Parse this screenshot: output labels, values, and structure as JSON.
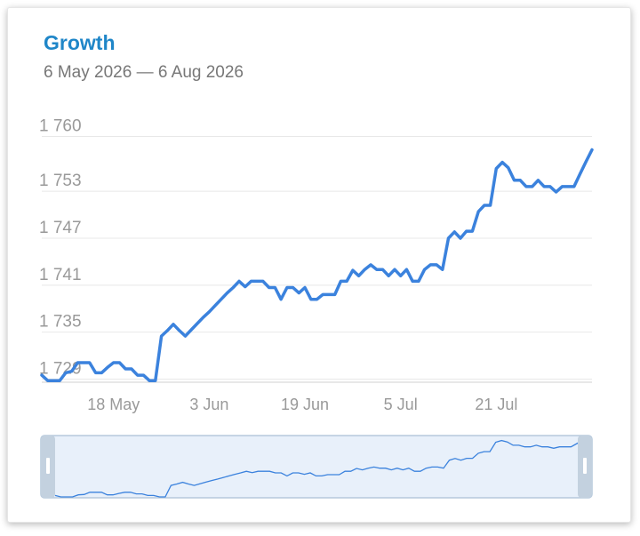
{
  "header": {
    "title": "Growth",
    "subtitle": "6 May 2026 — 6 Aug 2026"
  },
  "colors": {
    "line": "#3b82dd",
    "title": "#1f86c8",
    "grid": "#e8e8e8",
    "text": "#999999",
    "navigator_fill": "#e8f0fa",
    "navigator_border": "#b5c8dc",
    "handle": "#c3d1df"
  },
  "chart_data": {
    "type": "line",
    "title": "Growth",
    "subtitle": "6 May 2026 — 6 Aug 2026",
    "y_tick_labels": [
      "1 729",
      "1 735",
      "1 741",
      "1 747",
      "1 753",
      "1 760"
    ],
    "y_ticks": [
      1729,
      1735,
      1741,
      1747,
      1753,
      1760
    ],
    "ylim": [
      1728.6,
      1760.4
    ],
    "x_tick_labels": [
      "18 May",
      "3 Jun",
      "19 Jun",
      "5 Jul",
      "21 Jul"
    ],
    "x_ticks": [
      "2026-05-18",
      "2026-06-03",
      "2026-06-19",
      "2026-07-05",
      "2026-07-21"
    ],
    "xlim": [
      "2026-05-06",
      "2026-08-06"
    ],
    "grid": true,
    "navigator": true,
    "series": [
      {
        "x": [
          "2026-05-06",
          "2026-05-07",
          "2026-05-08",
          "2026-05-09",
          "2026-05-10",
          "2026-05-11",
          "2026-05-12",
          "2026-05-13",
          "2026-05-14",
          "2026-05-15",
          "2026-05-16",
          "2026-05-17",
          "2026-05-18",
          "2026-05-19",
          "2026-05-20",
          "2026-05-21",
          "2026-05-22",
          "2026-05-23",
          "2026-05-24",
          "2026-05-25",
          "2026-05-26",
          "2026-05-27",
          "2026-05-28",
          "2026-05-29",
          "2026-05-30",
          "2026-05-31",
          "2026-06-01",
          "2026-06-02",
          "2026-06-03",
          "2026-06-04",
          "2026-06-05",
          "2026-06-06",
          "2026-06-07",
          "2026-06-08",
          "2026-06-09",
          "2026-06-10",
          "2026-06-11",
          "2026-06-12",
          "2026-06-13",
          "2026-06-14",
          "2026-06-15",
          "2026-06-16",
          "2026-06-17",
          "2026-06-18",
          "2026-06-19",
          "2026-06-20",
          "2026-06-21",
          "2026-06-22",
          "2026-06-23",
          "2026-06-24",
          "2026-06-25",
          "2026-06-26",
          "2026-06-27",
          "2026-06-28",
          "2026-06-29",
          "2026-06-30",
          "2026-07-01",
          "2026-07-02",
          "2026-07-03",
          "2026-07-04",
          "2026-07-05",
          "2026-07-06",
          "2026-07-07",
          "2026-07-08",
          "2026-07-09",
          "2026-07-10",
          "2026-07-11",
          "2026-07-12",
          "2026-07-13",
          "2026-07-14",
          "2026-07-15",
          "2026-07-16",
          "2026-07-17",
          "2026-07-18",
          "2026-07-19",
          "2026-07-20",
          "2026-07-21",
          "2026-07-22",
          "2026-07-23",
          "2026-07-24",
          "2026-07-25",
          "2026-07-26",
          "2026-07-27",
          "2026-07-28",
          "2026-07-29",
          "2026-07-30",
          "2026-07-31",
          "2026-08-01",
          "2026-08-02",
          "2026-08-03",
          "2026-08-04",
          "2026-08-05",
          "2026-08-06"
        ],
        "values": [
          1729.5,
          1728.8,
          1728.8,
          1728.8,
          1729.8,
          1730.0,
          1731.1,
          1731.1,
          1731.1,
          1729.8,
          1729.8,
          1730.5,
          1731.1,
          1731.1,
          1730.3,
          1730.3,
          1729.5,
          1729.5,
          1728.8,
          1728.8,
          1734.5,
          1735.2,
          1736.0,
          1735.2,
          1734.5,
          1735.3,
          1736.1,
          1736.9,
          1737.6,
          1738.4,
          1739.2,
          1740.0,
          1740.7,
          1741.5,
          1740.8,
          1741.5,
          1741.5,
          1741.5,
          1740.7,
          1740.7,
          1739.2,
          1740.7,
          1740.7,
          1740.0,
          1740.7,
          1739.2,
          1739.2,
          1739.8,
          1739.8,
          1739.8,
          1741.5,
          1741.5,
          1742.9,
          1742.2,
          1743.0,
          1743.6,
          1743.0,
          1743.0,
          1742.2,
          1743.0,
          1742.2,
          1743.0,
          1741.5,
          1741.5,
          1743.0,
          1743.6,
          1743.6,
          1743.0,
          1747.0,
          1747.8,
          1747.0,
          1747.9,
          1747.9,
          1750.4,
          1751.2,
          1751.2,
          1755.9,
          1756.7,
          1756.0,
          1754.4,
          1754.4,
          1753.6,
          1753.6,
          1754.4,
          1753.6,
          1753.6,
          1752.9,
          1753.6,
          1753.6,
          1753.6,
          1755.2,
          1756.8,
          1758.3
        ]
      }
    ]
  }
}
